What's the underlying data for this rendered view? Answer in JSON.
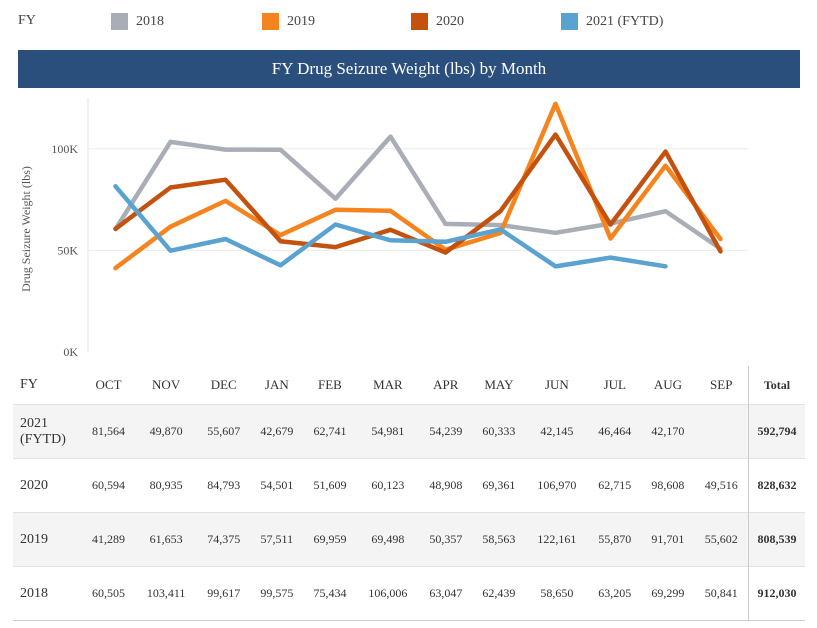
{
  "legend": {
    "title": "FY",
    "items": [
      {
        "label": "2018",
        "color": "#a8adb6"
      },
      {
        "label": "2019",
        "color": "#f5841f"
      },
      {
        "label": "2020",
        "color": "#c4510e"
      },
      {
        "label": "2021 (FYTD)",
        "color": "#5aa2cf"
      }
    ]
  },
  "chart_data": {
    "type": "line",
    "title": "FY Drug Seizure Weight (lbs) by Month",
    "xlabel": "",
    "ylabel": "Drug Seizure Weight (lbs)",
    "categories": [
      "OCT",
      "NOV",
      "DEC",
      "JAN",
      "FEB",
      "MAR",
      "APR",
      "MAY",
      "JUN",
      "JUL",
      "AUG",
      "SEP"
    ],
    "yticks": [
      "0K",
      "50K",
      "100K"
    ],
    "ylim": [
      0,
      125000
    ],
    "grid": true,
    "series": [
      {
        "name": "2018",
        "color": "#a8adb6",
        "values": [
          60505,
          103411,
          99617,
          99575,
          75434,
          106006,
          63047,
          62439,
          58650,
          63205,
          69299,
          50841
        ]
      },
      {
        "name": "2019",
        "color": "#f5841f",
        "values": [
          41289,
          61653,
          74375,
          57511,
          69959,
          69498,
          50357,
          58563,
          122161,
          55870,
          91701,
          55602
        ]
      },
      {
        "name": "2020",
        "color": "#c4510e",
        "values": [
          60594,
          80935,
          84793,
          54501,
          51609,
          60123,
          48908,
          69361,
          106970,
          62715,
          98608,
          49516
        ]
      },
      {
        "name": "2021 (FYTD)",
        "color": "#5aa2cf",
        "values": [
          81564,
          49870,
          55607,
          42679,
          62741,
          54981,
          54239,
          60333,
          42145,
          46464,
          42170,
          null
        ]
      }
    ]
  },
  "table": {
    "fy_header": "FY",
    "total_header": "Total",
    "rows": [
      {
        "fy": "2021 (FYTD)",
        "values": [
          "81,564",
          "49,870",
          "55,607",
          "42,679",
          "62,741",
          "54,981",
          "54,239",
          "60,333",
          "42,145",
          "46,464",
          "42,170",
          ""
        ],
        "total": "592,794"
      },
      {
        "fy": "2020",
        "values": [
          "60,594",
          "80,935",
          "84,793",
          "54,501",
          "51,609",
          "60,123",
          "48,908",
          "69,361",
          "106,970",
          "62,715",
          "98,608",
          "49,516"
        ],
        "total": "828,632"
      },
      {
        "fy": "2019",
        "values": [
          "41,289",
          "61,653",
          "74,375",
          "57,511",
          "69,959",
          "69,498",
          "50,357",
          "58,563",
          "122,161",
          "55,870",
          "91,701",
          "55,602"
        ],
        "total": "808,539"
      },
      {
        "fy": "2018",
        "values": [
          "60,505",
          "103,411",
          "99,617",
          "99,575",
          "75,434",
          "106,006",
          "63,047",
          "62,439",
          "58,650",
          "63,205",
          "69,299",
          "50,841"
        ],
        "total": "912,030"
      }
    ]
  }
}
